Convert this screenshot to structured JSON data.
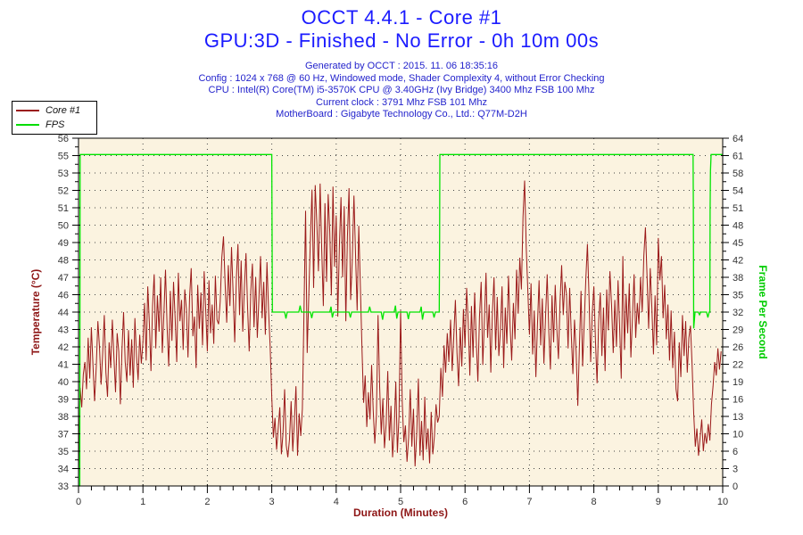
{
  "header": {
    "title_line1": "OCCT 4.4.1 - Core #1",
    "title_line2": "GPU:3D - Finished - No Error - 0h 10m 00s",
    "info_lines": [
      "Generated by OCCT : 2015. 11. 06 18:35:16",
      "Config : 1024 x 768 @ 60 Hz, Windowed mode, Shader Complexity 4, without Error Checking",
      "CPU : Intel(R) Core(TM) i5-3570K CPU @ 3.40GHz (Ivy Bridge) 3400 Mhz FSB 100 Mhz",
      "Current clock : 3791 Mhz FSB 101 Mhz",
      "MotherBoard : Gigabyte Technology Co., Ltd.: Q77M-D2H"
    ]
  },
  "legend": {
    "items": [
      {
        "label": "Core #1",
        "color": "#9b1a1a"
      },
      {
        "label": "FPS",
        "color": "#00dd00"
      }
    ]
  },
  "colors": {
    "title_blue": "#1b1bff",
    "info_blue": "#2323cc",
    "temp_trace": "#9b1a1a",
    "temp_label": "#8e1616",
    "fps_trace": "#00e400",
    "fps_label": "#00cc00",
    "plot_background": "#fbf3e0",
    "grid_dots": "#444444",
    "axis_black": "#000000"
  },
  "chart_data": {
    "type": "line",
    "title": "OCCT 4.4.1 - Core #1",
    "subtitle": "GPU:3D - Finished - No Error - 0h 10m 00s",
    "grid": "dotted, at every labeled y-tick and every x minute",
    "legend_position": "top-left",
    "x_axis": {
      "label": "Duration (Minutes)",
      "min": 0,
      "max": 10,
      "tick_labels": [
        "0",
        "1",
        "2",
        "3",
        "4",
        "5",
        "6",
        "7",
        "8",
        "9",
        "10"
      ],
      "minor_ticks_per_interval": 4
    },
    "temp_axis": {
      "label": "Temperature (°C)",
      "side": "left",
      "min": 33,
      "max": 56,
      "tick_labels_top_to_bottom": [
        "56",
        "55",
        "53",
        "52",
        "51",
        "50",
        "49",
        "48",
        "47",
        "46",
        "44",
        "43",
        "42",
        "41",
        "40",
        "39",
        "38",
        "37",
        "35",
        "34",
        "33"
      ]
    },
    "fps_axis": {
      "label": "Frame Per Second",
      "side": "right",
      "min": 0,
      "max": 64,
      "tick_labels_top_to_bottom": [
        "64",
        "61",
        "58",
        "54",
        "51",
        "48",
        "45",
        "42",
        "38",
        "35",
        "32",
        "29",
        "26",
        "22",
        "19",
        "16",
        "13",
        "10",
        "6",
        "3",
        "0"
      ]
    },
    "series": [
      {
        "name": "Core #1",
        "axis": "temperature",
        "color": "#9b1a1a",
        "x_start": 0,
        "x_step": 0.025,
        "values": [
          33.6,
          39.5,
          38.2,
          40.4,
          41.2,
          39.4,
          42.8,
          40.1,
          43.5,
          41.0,
          38.6,
          40.9,
          43.9,
          42.2,
          39.7,
          41.8,
          44.3,
          40.5,
          38.9,
          42.5,
          40.8,
          44.0,
          41.5,
          39.2,
          43.1,
          41.9,
          38.4,
          42.0,
          44.5,
          41.2,
          39.9,
          43.3,
          40.3,
          42.7,
          39.5,
          44.1,
          41.6,
          40.0,
          43.0,
          41.1,
          42.5,
          45.1,
          41.3,
          46.2,
          43.8,
          40.6,
          44.9,
          47.0,
          42.1,
          45.6,
          43.2,
          46.8,
          41.8,
          44.4,
          47.3,
          43.5,
          40.9,
          45.9,
          42.6,
          46.5,
          44.1,
          41.2,
          47.1,
          43.9,
          45.3,
          42.0,
          46.0,
          44.7,
          41.5,
          45.5,
          47.4,
          42.9,
          44.2,
          40.8,
          46.3,
          43.4,
          45.8,
          42.3,
          47.2,
          44.6,
          41.9,
          46.6,
          43.1,
          45.0,
          42.4,
          46.9,
          44.0,
          43.7,
          45.2,
          48.1,
          49.5,
          46.4,
          43.8,
          47.6,
          44.9,
          48.8,
          45.7,
          42.5,
          46.7,
          49.0,
          44.3,
          47.9,
          43.2,
          46.1,
          48.4,
          44.8,
          41.9,
          45.9,
          47.7,
          43.5,
          46.8,
          42.8,
          45.4,
          48.2,
          44.1,
          46.5,
          43.0,
          47.8,
          44.6,
          42.2,
          38.9,
          36.2,
          37.5,
          35.4,
          36.8,
          38.2,
          35.1,
          36.5,
          39.4,
          35.7,
          34.9,
          36.1,
          38.6,
          35.3,
          37.2,
          39.6,
          35.0,
          37.8,
          36.3,
          38.1,
          44.5,
          51.2,
          41.8,
          45.6,
          49.3,
          52.6,
          46.1,
          52.9,
          50.4,
          47.2,
          53.0,
          48.6,
          44.9,
          51.7,
          46.5,
          52.3,
          49.8,
          45.6,
          52.8,
          47.5,
          50.9,
          44.2,
          48.9,
          52.1,
          46.8,
          51.5,
          43.9,
          49.5,
          52.7,
          45.3,
          47.9,
          52.2,
          48.3,
          44.6,
          50.2,
          46.2,
          42.1,
          38.5,
          40.3,
          36.9,
          39.2,
          37.4,
          41.0,
          38.0,
          35.8,
          37.7,
          44.3,
          39.6,
          36.4,
          38.8,
          35.5,
          37.1,
          40.6,
          36.0,
          38.3,
          34.9,
          36.7,
          39.9,
          35.2,
          37.6,
          44.6,
          38.6,
          35.9,
          37.0,
          34.6,
          36.2,
          39.4,
          35.6,
          38.1,
          34.3,
          36.5,
          40.1,
          35.0,
          37.3,
          34.7,
          38.9,
          35.4,
          36.8,
          34.5,
          37.9,
          35.1,
          36.3,
          38.4,
          37.2,
          37.6,
          40.8,
          38.9,
          42.3,
          40.5,
          43.1,
          41.2,
          44.0,
          40.6,
          42.9,
          45.3,
          41.8,
          39.6,
          43.5,
          40.9,
          44.7,
          42.2,
          46.1,
          43.8,
          40.3,
          44.9,
          41.5,
          45.8,
          42.6,
          39.9,
          44.2,
          46.5,
          41.0,
          43.9,
          47.1,
          42.8,
          45.0,
          40.5,
          44.5,
          46.8,
          42.0,
          45.5,
          41.6,
          43.3,
          46.2,
          40.8,
          44.8,
          42.4,
          46.9,
          43.6,
          41.3,
          45.1,
          42.7,
          47.3,
          44.4,
          48.1,
          46.0,
          50.8,
          53.2,
          48.8,
          45.9,
          43.0,
          46.4,
          41.7,
          44.6,
          40.2,
          43.7,
          46.6,
          42.3,
          45.4,
          41.1,
          44.1,
          47.0,
          43.2,
          40.7,
          45.6,
          42.5,
          46.3,
          43.4,
          41.4,
          45.2,
          47.6,
          44.3,
          46.5,
          45.7,
          42.1,
          46.1,
          43.0,
          40.4,
          44.0,
          41.9,
          38.3,
          42.2,
          45.9,
          40.9,
          43.8,
          46.7,
          49.0,
          45.5,
          41.2,
          44.4,
          46.2,
          42.6,
          39.8,
          43.9,
          45.8,
          41.6,
          44.8,
          40.6,
          46.0,
          43.3,
          47.2,
          44.9,
          41.8,
          45.3,
          42.2,
          46.6,
          43.5,
          40.1,
          48.2,
          42.0,
          45.7,
          43.1,
          46.4,
          41.5,
          44.2,
          47.0,
          42.8,
          45.1,
          43.7,
          46.8,
          44.5,
          48.2,
          50.1,
          46.9,
          43.4,
          47.4,
          44.8,
          41.7,
          45.6,
          42.3,
          49.4,
          46.6,
          48.2,
          44.1,
          46.3,
          42.7,
          45.0,
          41.3,
          44.6,
          40.8,
          43.2,
          39.4,
          38.6,
          42.5,
          40.2,
          44.3,
          41.6,
          43.9,
          40.5,
          42.8,
          43.6,
          41.0,
          37.8,
          35.6,
          36.8,
          35.0,
          36.2,
          37.4,
          35.3,
          36.5,
          35.8,
          37.1,
          36.0,
          38.4,
          39.6,
          41.2,
          40.3,
          42.1,
          40.7,
          41.9
        ]
      },
      {
        "name": "FPS",
        "axis": "fps",
        "color": "#00e400",
        "points": [
          [
            0,
            0
          ],
          [
            0.02,
            0
          ],
          [
            0.025,
            61
          ],
          [
            3.0,
            61
          ],
          [
            3.005,
            44
          ],
          [
            3.01,
            32
          ],
          [
            3.2,
            32
          ],
          [
            3.22,
            30.8
          ],
          [
            3.24,
            32
          ],
          [
            3.42,
            32
          ],
          [
            3.44,
            33.2
          ],
          [
            3.46,
            32
          ],
          [
            3.6,
            32
          ],
          [
            3.62,
            30.9
          ],
          [
            3.64,
            32
          ],
          [
            3.9,
            32
          ],
          [
            3.92,
            33
          ],
          [
            3.94,
            31
          ],
          [
            3.96,
            32
          ],
          [
            4.2,
            32
          ],
          [
            4.22,
            31
          ],
          [
            4.24,
            32
          ],
          [
            4.5,
            32
          ],
          [
            4.52,
            33
          ],
          [
            4.54,
            32
          ],
          [
            4.7,
            32
          ],
          [
            4.72,
            30.6
          ],
          [
            4.74,
            32
          ],
          [
            4.9,
            32
          ],
          [
            4.92,
            33.2
          ],
          [
            4.94,
            30.8
          ],
          [
            4.96,
            32
          ],
          [
            5.1,
            32
          ],
          [
            5.12,
            30.7
          ],
          [
            5.14,
            32
          ],
          [
            5.3,
            32
          ],
          [
            5.32,
            33
          ],
          [
            5.34,
            30.6
          ],
          [
            5.36,
            32
          ],
          [
            5.5,
            32
          ],
          [
            5.52,
            31
          ],
          [
            5.54,
            32
          ],
          [
            5.6,
            32
          ],
          [
            5.605,
            44
          ],
          [
            5.61,
            61
          ],
          [
            9.54,
            61
          ],
          [
            9.545,
            52
          ],
          [
            9.55,
            29
          ],
          [
            9.57,
            32
          ],
          [
            9.62,
            32
          ],
          [
            9.64,
            31.5
          ],
          [
            9.66,
            32
          ],
          [
            9.75,
            32
          ],
          [
            9.77,
            31
          ],
          [
            9.79,
            32
          ],
          [
            9.8,
            32
          ],
          [
            9.805,
            51
          ],
          [
            9.81,
            58
          ],
          [
            9.82,
            61
          ],
          [
            10,
            61
          ]
        ]
      }
    ]
  }
}
